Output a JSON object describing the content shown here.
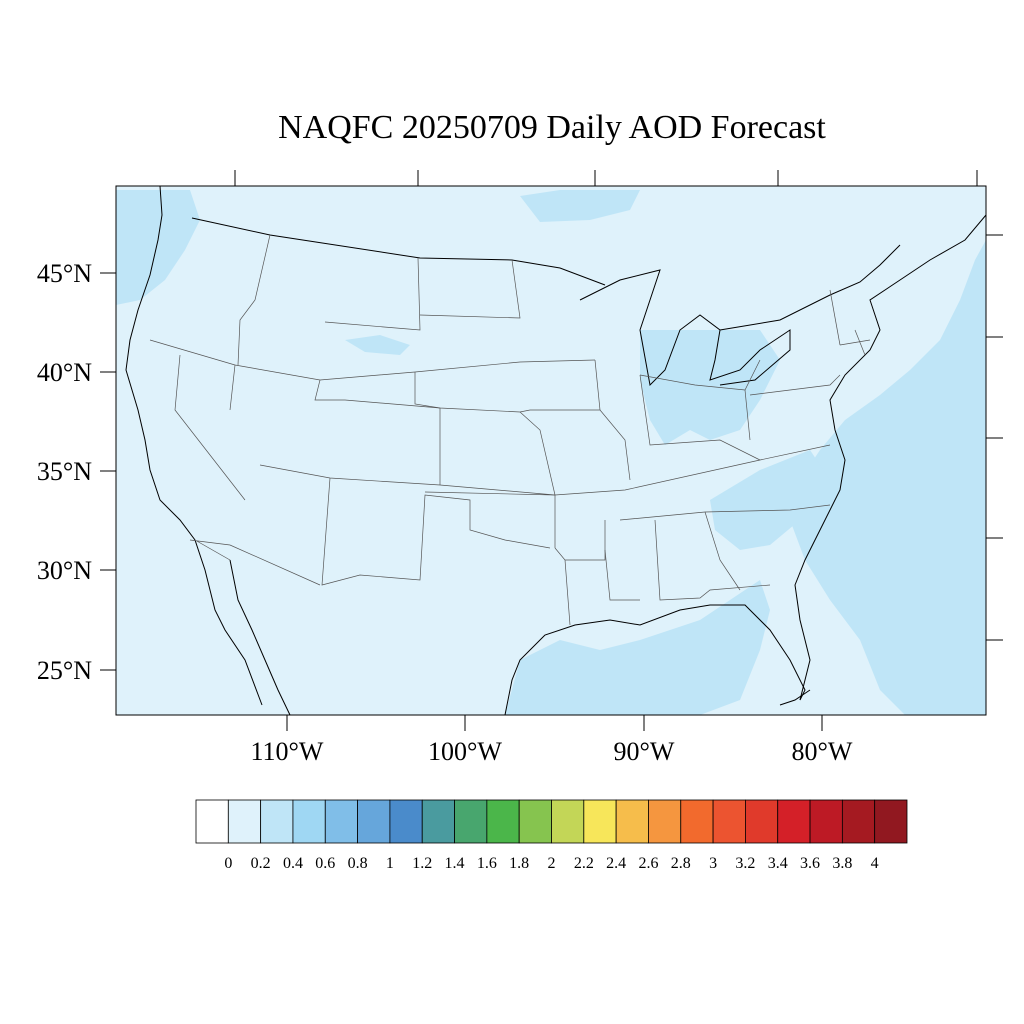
{
  "title": "NAQFC 20250709 Daily AOD Forecast",
  "colors": {
    "background_aod": "#dff2fb",
    "light_aod": "#bfe5f7",
    "coast": "#000000",
    "state_lines": "#555555"
  },
  "map": {
    "lat_labels": [
      "45°N",
      "40°N",
      "35°N",
      "30°N",
      "25°N"
    ],
    "lon_labels": [
      "110°W",
      "100°W",
      "90°W",
      "80°W"
    ]
  },
  "colorbar": {
    "labels": [
      "0",
      "0.2",
      "0.4",
      "0.6",
      "0.8",
      "1",
      "1.2",
      "1.4",
      "1.6",
      "1.8",
      "2",
      "2.2",
      "2.4",
      "2.6",
      "2.8",
      "3",
      "3.2",
      "3.4",
      "3.6",
      "3.8",
      "4"
    ],
    "colors": [
      "#ffffff",
      "#dff2fb",
      "#bfe5f7",
      "#9fd7f3",
      "#80bee8",
      "#66a6db",
      "#4a8bcb",
      "#4a9b9f",
      "#48a66e",
      "#4bb64a",
      "#86c44f",
      "#c3d657",
      "#f7e65a",
      "#f6bd4b",
      "#f5963f",
      "#f26a2d",
      "#ec5430",
      "#e03a2b",
      "#d42028",
      "#bd1a25",
      "#a51a21",
      "#911820"
    ]
  }
}
